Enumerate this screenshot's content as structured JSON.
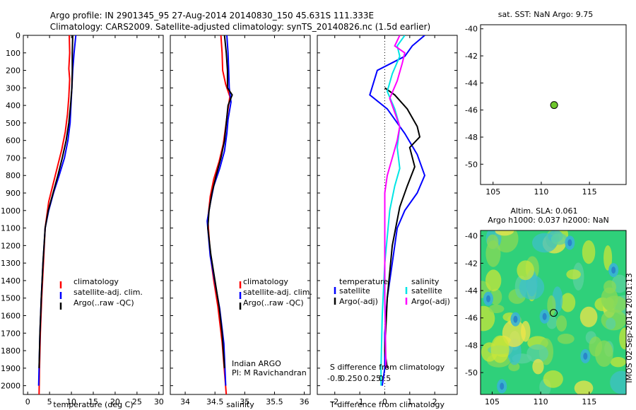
{
  "header": {
    "line1": "Argo profile: IN 2901345_95 27-Aug-2014 20140830_150 45.631S 111.333E",
    "line2": "Climatology: CARS2009. Satellite-adjusted climatology: synTS_20140826.nc (1.5d earlier)"
  },
  "colors": {
    "climatology": "#ff0000",
    "satellite": "#0000ff",
    "argo": "#000000",
    "sat_salinity": "#00e5e5",
    "argo_salinity": "#ff00ff",
    "marker": "#6ec62c"
  },
  "chart_data": [
    {
      "type": "line",
      "panel": "temperature",
      "xlabel": "temperature (deg C)",
      "xlim": [
        -1,
        31
      ],
      "xticks": [
        0,
        5,
        10,
        15,
        20,
        25,
        30
      ],
      "ylim": [
        0,
        2050
      ],
      "yticks": [
        0,
        100,
        200,
        300,
        400,
        500,
        600,
        700,
        800,
        900,
        1000,
        1100,
        1200,
        1300,
        1400,
        1500,
        1600,
        1700,
        1800,
        1900,
        2000
      ],
      "yreversed": true,
      "legend": [
        "climatology",
        "satellite-adj. clim.",
        "Argo(..raw -QC)"
      ],
      "series": [
        {
          "name": "climatology",
          "color": "#ff0000",
          "points": [
            [
              9.5,
              0
            ],
            [
              9.6,
              100
            ],
            [
              9.4,
              190
            ],
            [
              9.6,
              250
            ],
            [
              9.4,
              350
            ],
            [
              9.1,
              450
            ],
            [
              8.6,
              550
            ],
            [
              7.8,
              650
            ],
            [
              6.8,
              750
            ],
            [
              5.8,
              850
            ],
            [
              4.8,
              950
            ],
            [
              4.0,
              1100
            ],
            [
              3.6,
              1300
            ],
            [
              3.2,
              1500
            ],
            [
              2.9,
              1700
            ],
            [
              2.7,
              1900
            ],
            [
              2.6,
              2050
            ]
          ]
        },
        {
          "name": "satellite-adj. clim.",
          "color": "#0000ff",
          "points": [
            [
              11.0,
              0
            ],
            [
              10.6,
              100
            ],
            [
              10.3,
              200
            ],
            [
              10.1,
              300
            ],
            [
              9.9,
              400
            ],
            [
              9.7,
              500
            ],
            [
              9.2,
              600
            ],
            [
              8.4,
              700
            ],
            [
              7.2,
              800
            ],
            [
              5.9,
              900
            ],
            [
              4.8,
              1000
            ],
            [
              4.0,
              1100
            ],
            [
              3.5,
              1300
            ],
            [
              3.1,
              1500
            ],
            [
              2.8,
              1700
            ],
            [
              2.6,
              1900
            ],
            [
              2.5,
              2000
            ]
          ]
        },
        {
          "name": "Argo(..raw -QC)",
          "color": "#000000",
          "points": [
            [
              10.3,
              0
            ],
            [
              10.2,
              100
            ],
            [
              10.2,
              200
            ],
            [
              10.1,
              300
            ],
            [
              9.8,
              400
            ],
            [
              9.4,
              500
            ],
            [
              8.8,
              600
            ],
            [
              7.9,
              700
            ],
            [
              6.9,
              800
            ],
            [
              5.8,
              900
            ],
            [
              4.7,
              1000
            ],
            [
              4.0,
              1100
            ],
            [
              3.5,
              1300
            ],
            [
              3.1,
              1500
            ],
            [
              2.8,
              1700
            ],
            [
              2.6,
              1900
            ]
          ]
        }
      ]
    },
    {
      "type": "line",
      "panel": "salinity",
      "xlabel": "salinity",
      "xlim": [
        33.75,
        36.1
      ],
      "xticks": [
        34,
        34.5,
        35,
        35.5,
        36
      ],
      "ylim": [
        0,
        2050
      ],
      "yreversed": true,
      "legend": [
        "climatology",
        "satellite-adj. clim.",
        "Argo(..raw -QC)"
      ],
      "note1": "Indian ARGO",
      "note2": "PI: M Ravichandran",
      "series": [
        {
          "name": "climatology",
          "color": "#ff0000",
          "points": [
            [
              34.6,
              0
            ],
            [
              34.62,
              100
            ],
            [
              34.63,
              200
            ],
            [
              34.68,
              280
            ],
            [
              34.75,
              350
            ],
            [
              34.72,
              420
            ],
            [
              34.68,
              520
            ],
            [
              34.64,
              620
            ],
            [
              34.57,
              720
            ],
            [
              34.48,
              820
            ],
            [
              34.42,
              920
            ],
            [
              34.38,
              1050
            ],
            [
              34.42,
              1250
            ],
            [
              34.48,
              1400
            ],
            [
              34.55,
              1550
            ],
            [
              34.62,
              1750
            ],
            [
              34.69,
              2050
            ]
          ]
        },
        {
          "name": "satellite-adj. clim.",
          "color": "#0000ff",
          "points": [
            [
              34.7,
              0
            ],
            [
              34.72,
              100
            ],
            [
              34.73,
              200
            ],
            [
              34.74,
              300
            ],
            [
              34.77,
              380
            ],
            [
              34.72,
              480
            ],
            [
              34.7,
              560
            ],
            [
              34.66,
              660
            ],
            [
              34.58,
              760
            ],
            [
              34.48,
              860
            ],
            [
              34.42,
              960
            ],
            [
              34.37,
              1060
            ],
            [
              34.42,
              1260
            ],
            [
              34.5,
              1410
            ],
            [
              34.58,
              1560
            ],
            [
              34.65,
              1760
            ],
            [
              34.68,
              2000
            ]
          ]
        },
        {
          "name": "Argo(..raw -QC)",
          "color": "#000000",
          "points": [
            [
              34.66,
              0
            ],
            [
              34.69,
              100
            ],
            [
              34.71,
              200
            ],
            [
              34.71,
              300
            ],
            [
              34.79,
              340
            ],
            [
              34.72,
              400
            ],
            [
              34.69,
              500
            ],
            [
              34.66,
              600
            ],
            [
              34.6,
              700
            ],
            [
              34.52,
              800
            ],
            [
              34.45,
              900
            ],
            [
              34.4,
              1000
            ],
            [
              34.38,
              1100
            ],
            [
              34.43,
              1250
            ],
            [
              34.5,
              1400
            ],
            [
              34.57,
              1550
            ],
            [
              34.62,
              1700
            ],
            [
              34.66,
              1900
            ]
          ]
        }
      ]
    },
    {
      "type": "line",
      "panel": "difference",
      "xlabel": "T difference from climatology",
      "xlim": [
        -2.7,
        2.9
      ],
      "xticks": [
        -2,
        -1,
        0,
        1,
        2
      ],
      "xlabel2": "S difference from climatology",
      "xticks2": [
        "-0.5",
        "-0.25",
        "0",
        "0.25",
        "0.5"
      ],
      "ylim": [
        0,
        2050
      ],
      "yreversed": true,
      "legend_headers": [
        "temperature",
        "salinity"
      ],
      "legend": [
        "satellite",
        "Argo(-adj)",
        "satellite",
        "Argo(-adj)"
      ],
      "series": [
        {
          "name": "satellite",
          "group": "temperature",
          "color": "#0000ff",
          "points": [
            [
              1.6,
              0
            ],
            [
              1.1,
              60
            ],
            [
              0.8,
              120
            ],
            [
              -0.3,
              200
            ],
            [
              -0.6,
              340
            ],
            [
              0.1,
              420
            ],
            [
              0.8,
              560
            ],
            [
              1.3,
              680
            ],
            [
              1.6,
              800
            ],
            [
              1.3,
              900
            ],
            [
              0.8,
              1000
            ],
            [
              0.5,
              1100
            ],
            [
              0.3,
              1300
            ],
            [
              0.1,
              1500
            ],
            [
              0.0,
              1700
            ],
            [
              0.0,
              1900
            ],
            [
              -0.1,
              2000
            ]
          ]
        },
        {
          "name": "Argo(-adj)",
          "group": "temperature",
          "color": "#000000",
          "points": [
            [
              0.0,
              300
            ],
            [
              0.4,
              340
            ],
            [
              0.9,
              420
            ],
            [
              1.3,
              520
            ],
            [
              1.4,
              580
            ],
            [
              1.0,
              640
            ],
            [
              1.2,
              750
            ],
            [
              0.9,
              860
            ],
            [
              0.6,
              980
            ],
            [
              0.3,
              1200
            ],
            [
              0.1,
              1500
            ],
            [
              0.0,
              1800
            ],
            [
              0.1,
              1900
            ]
          ]
        },
        {
          "name": "satellite",
          "group": "salinity",
          "color": "#00e5e5",
          "points": [
            [
              0.8,
              0
            ],
            [
              0.5,
              60
            ],
            [
              0.6,
              120
            ],
            [
              0.3,
              220
            ],
            [
              0.1,
              320
            ],
            [
              0.4,
              420
            ],
            [
              0.6,
              520
            ],
            [
              0.5,
              640
            ],
            [
              0.6,
              760
            ],
            [
              0.4,
              860
            ],
            [
              0.2,
              1000
            ],
            [
              0.0,
              1300
            ],
            [
              -0.1,
              1600
            ],
            [
              -0.15,
              1900
            ],
            [
              -0.15,
              2000
            ]
          ]
        },
        {
          "name": "Argo(-adj)",
          "group": "salinity",
          "color": "#ff00ff",
          "points": [
            [
              0.6,
              0
            ],
            [
              0.4,
              60
            ],
            [
              0.8,
              100
            ],
            [
              0.7,
              160
            ],
            [
              0.5,
              260
            ],
            [
              0.2,
              360
            ],
            [
              0.4,
              440
            ],
            [
              0.6,
              520
            ],
            [
              0.5,
              600
            ],
            [
              0.3,
              700
            ],
            [
              0.1,
              800
            ],
            [
              0.0,
              900
            ],
            [
              0.0,
              1200
            ],
            [
              0.0,
              1500
            ],
            [
              0.05,
              1900
            ]
          ]
        }
      ]
    },
    {
      "type": "scatter",
      "panel": "sst_map",
      "title": "sat. SST: NaN Argo: 9.75",
      "xlim": [
        103.7,
        118.8
      ],
      "xticks": [
        105,
        110,
        115
      ],
      "ylim": [
        -51.5,
        -39.7
      ],
      "yticks": [
        -40,
        -42,
        -44,
        -46,
        -48,
        -50
      ],
      "points": [
        [
          111.333,
          -45.631
        ]
      ]
    },
    {
      "type": "heatmap",
      "panel": "sla_map",
      "title": "Altim. SLA: 0.061",
      "subtitle": "Argo h1000: 0.037 h2000: NaN",
      "xlim": [
        103.8,
        118.8
      ],
      "xticks": [
        105,
        110,
        115
      ],
      "ylim": [
        -51.6,
        -39.6
      ],
      "yticks": [
        -40,
        -42,
        -44,
        -46,
        -48,
        -50
      ],
      "points": [
        [
          111.333,
          -45.631
        ]
      ]
    }
  ],
  "side_label": "IMOS 02-Sep-2014 20:01:13"
}
